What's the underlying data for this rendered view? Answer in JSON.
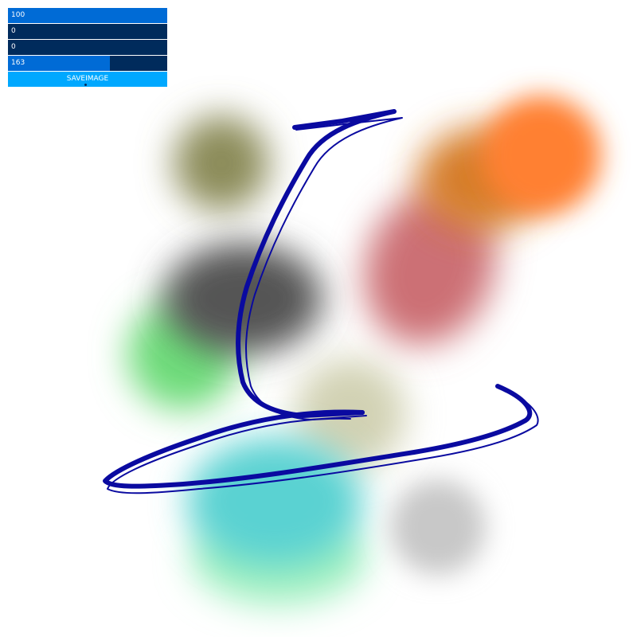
{
  "controls": {
    "sliders": [
      {
        "value": "100",
        "fraction": 1.0
      },
      {
        "value": "0",
        "fraction": 0.0
      },
      {
        "value": "0",
        "fraction": 0.0
      },
      {
        "value": "163",
        "fraction": 0.64
      }
    ],
    "save_button": "SAVEIMAGE"
  },
  "colors": {
    "slider_bg": "#002b5c",
    "slider_fill": "#006bd6",
    "button": "#00a8ff",
    "stroke": "#0a0aa0"
  },
  "canvas": {
    "blobs": [
      {
        "color": "#8c8c5a",
        "name": "olive-blob"
      },
      {
        "color": "#555555",
        "name": "gray-blob"
      },
      {
        "color": "#6edc7a",
        "name": "green-blob"
      },
      {
        "color": "#5ad2d2",
        "name": "cyan-blob"
      },
      {
        "color": "#a0f0c0",
        "name": "mint-blob"
      },
      {
        "color": "#c8c8c8",
        "name": "light-gray-blob"
      },
      {
        "color": "#d2d2b4",
        "name": "beige-blob"
      },
      {
        "color": "#cc6f74",
        "name": "pink-blob"
      },
      {
        "color": "#d67e2a",
        "name": "orange-blob"
      },
      {
        "color": "#ff8030",
        "name": "bright-orange-blob"
      }
    ]
  }
}
